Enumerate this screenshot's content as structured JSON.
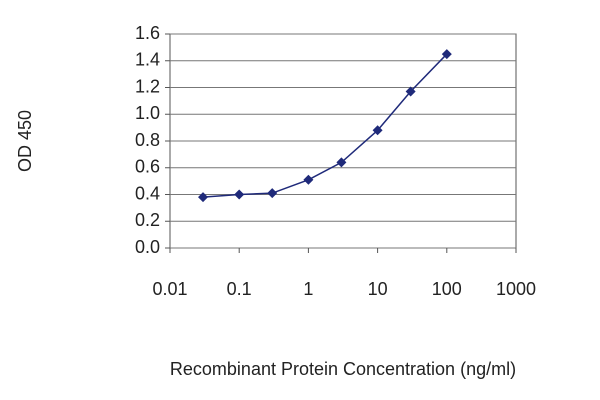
{
  "chart_data": {
    "type": "line",
    "x_label": "Recombinant Protein Concentration (ng/ml)",
    "y_label": "OD 450",
    "log_x": true,
    "grid": true,
    "series": [
      {
        "color": "#1f2a7a",
        "x": [
          0.03,
          0.1,
          0.3,
          1,
          3,
          10,
          30,
          100
        ],
        "values": [
          0.38,
          0.4,
          0.41,
          0.51,
          0.64,
          0.88,
          1.17,
          1.45
        ]
      }
    ],
    "xlim": [
      0.01,
      1000
    ],
    "xticks": [
      0.01,
      0.1,
      1,
      10,
      100,
      1000
    ],
    "ylim": [
      0,
      1.6
    ],
    "yticks": [
      {
        "value": 0,
        "label": "0.0"
      },
      {
        "value": 0.2,
        "label": "0.2"
      },
      {
        "value": 0.4,
        "label": "0.4"
      },
      {
        "value": 0.6,
        "label": "0.6"
      },
      {
        "value": 0.8,
        "label": "0.8"
      },
      {
        "value": 1.0,
        "label": "1.0"
      },
      {
        "value": 1.2,
        "label": "1.2"
      },
      {
        "value": 1.4,
        "label": "1.4"
      },
      {
        "value": 1.6,
        "label": "1.6"
      }
    ]
  }
}
